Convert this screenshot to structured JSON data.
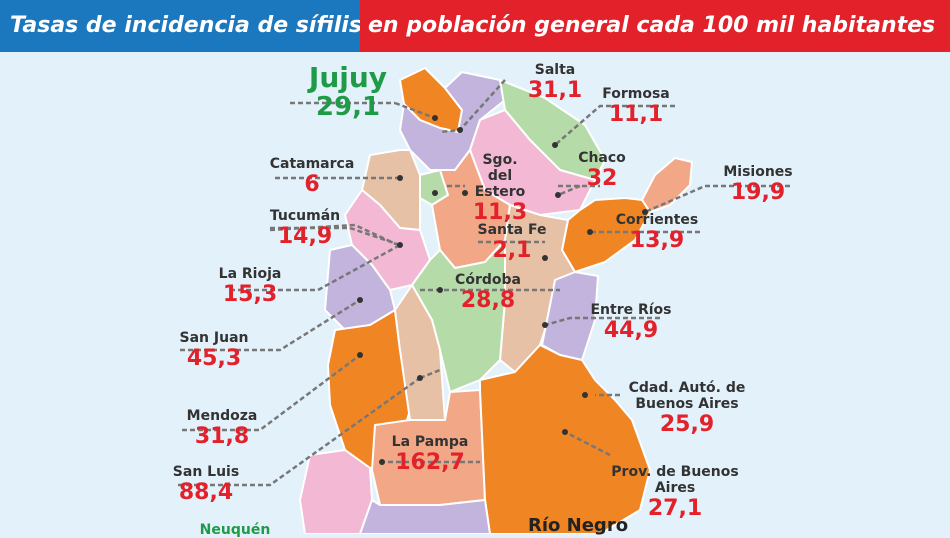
{
  "header": {
    "left": "Tasas de incidencia de sífilis",
    "right": "en población general cada 100 mil habitantes"
  },
  "colors": {
    "header_blue": "#1c78be",
    "header_red": "#e3212a",
    "value_red": "#e3212a",
    "highlight_green": "#1f9b48",
    "orange": "#f08524",
    "purple": "#c2b4dc",
    "pink": "#f2b8d4",
    "tan": "#e6c1a6",
    "light_green": "#b5dca8",
    "salmon": "#f2a887"
  },
  "provinces": {
    "jujuy": {
      "name": "Jujuy",
      "value": "29,1"
    },
    "salta": {
      "name": "Salta",
      "value": "31,1"
    },
    "formosa": {
      "name": "Formosa",
      "value": "11,1"
    },
    "catamarca": {
      "name": "Catamarca",
      "value": "6"
    },
    "sgo_estero": {
      "name": "Sgo. del Estero",
      "value": "11,3"
    },
    "chaco": {
      "name": "Chaco",
      "value": "32"
    },
    "misiones": {
      "name": "Misiones",
      "value": "19,9"
    },
    "tucuman": {
      "name": "Tucumán",
      "value": "14,9"
    },
    "santa_fe": {
      "name": "Santa Fe",
      "value": "2,1"
    },
    "corrientes": {
      "name": "Corrientes",
      "value": "13,9"
    },
    "la_rioja": {
      "name": "La Rioja",
      "value": "15,3"
    },
    "cordoba": {
      "name": "Córdoba",
      "value": "28,8"
    },
    "san_juan": {
      "name": "San Juan",
      "value": "45,3"
    },
    "entre_rios": {
      "name": "Entre Ríos",
      "value": "44,9"
    },
    "caba": {
      "name": "Cdad. Autó. de Buenos Aires",
      "value": "25,9"
    },
    "mendoza": {
      "name": "Mendoza",
      "value": "31,8"
    },
    "la_pampa": {
      "name": "La Pampa",
      "value": "162,7"
    },
    "san_luis": {
      "name": "San Luis",
      "value": "88,4"
    },
    "pba": {
      "name": "Prov. de Buenos Aires",
      "value": "27,1"
    },
    "neuquen": {
      "name": "Neuquén",
      "value": ""
    },
    "rio_negro": {
      "name": "Río Negro",
      "value": ""
    }
  }
}
